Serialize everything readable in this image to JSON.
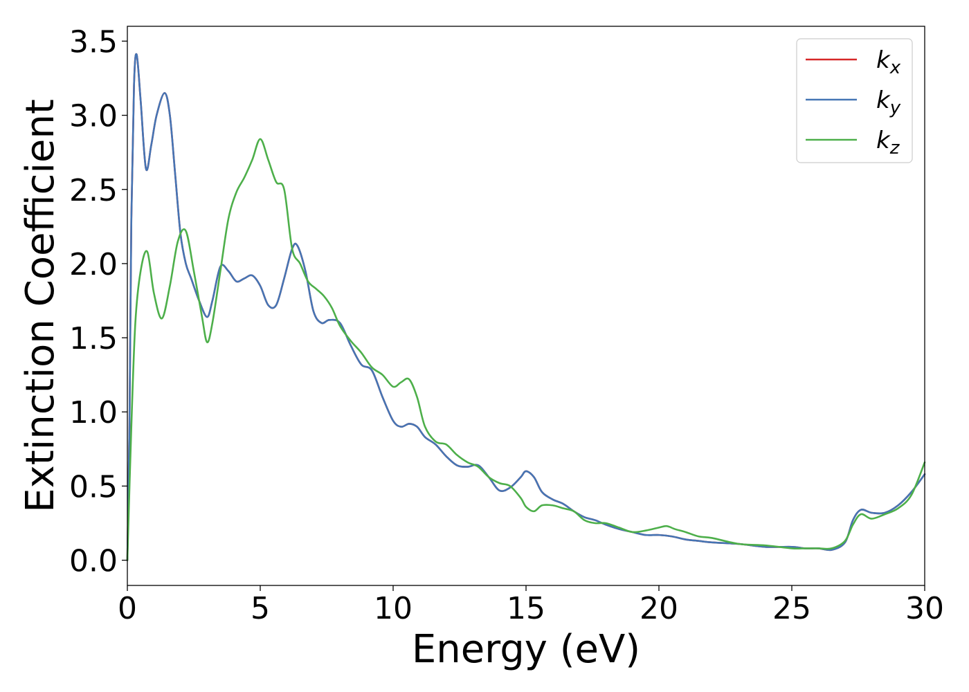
{
  "chart_data": {
    "type": "line",
    "title": "",
    "xlabel": "Energy (eV)",
    "ylabel": "Extinction Coefficient",
    "xlim": [
      0,
      30
    ],
    "ylim": [
      -0.17,
      3.6
    ],
    "x_ticks": [
      "0",
      "5",
      "10",
      "15",
      "20",
      "25",
      "30"
    ],
    "y_ticks": [
      "0.0",
      "0.5",
      "1.0",
      "1.5",
      "2.0",
      "2.5",
      "3.0",
      "3.5"
    ],
    "grid": false,
    "legend_position": "top-right",
    "series": [
      {
        "name": "kx",
        "label_base": "k",
        "label_sub": "x",
        "color": "#d62728",
        "x": [
          0,
          0.08,
          0.15,
          0.25,
          0.35,
          0.5,
          0.7,
          0.9,
          1.1,
          1.4,
          1.6,
          1.8,
          2.0,
          2.2,
          2.4,
          2.7,
          3.0,
          3.2,
          3.5,
          3.8,
          4.1,
          4.4,
          4.7,
          5.0,
          5.3,
          5.6,
          5.9,
          6.2,
          6.4,
          6.7,
          7.0,
          7.3,
          7.6,
          8.0,
          8.4,
          8.8,
          9.2,
          9.6,
          10.0,
          10.3,
          10.6,
          10.9,
          11.2,
          11.6,
          12.0,
          12.4,
          12.8,
          13.2,
          13.6,
          14.0,
          14.4,
          14.8,
          15.0,
          15.3,
          15.6,
          16.0,
          16.4,
          16.8,
          17.2,
          17.6,
          18.0,
          18.5,
          19.0,
          19.5,
          20.0,
          20.5,
          21.0,
          21.5,
          22.0,
          23.0,
          24.0,
          25.0,
          25.5,
          26.0,
          26.5,
          27.0,
          27.3,
          27.6,
          28.0,
          28.5,
          29.0,
          29.5,
          30.0
        ],
        "y": [
          0.0,
          0.9,
          2.3,
          3.2,
          3.41,
          3.1,
          2.64,
          2.8,
          3.0,
          3.15,
          3.0,
          2.6,
          2.2,
          2.0,
          1.9,
          1.75,
          1.64,
          1.75,
          1.98,
          1.95,
          1.88,
          1.9,
          1.92,
          1.85,
          1.72,
          1.72,
          1.9,
          2.1,
          2.12,
          1.95,
          1.68,
          1.6,
          1.62,
          1.6,
          1.45,
          1.32,
          1.28,
          1.1,
          0.94,
          0.9,
          0.92,
          0.9,
          0.83,
          0.78,
          0.7,
          0.64,
          0.63,
          0.64,
          0.56,
          0.47,
          0.49,
          0.56,
          0.6,
          0.56,
          0.46,
          0.41,
          0.38,
          0.33,
          0.29,
          0.27,
          0.24,
          0.21,
          0.19,
          0.17,
          0.17,
          0.16,
          0.14,
          0.13,
          0.12,
          0.11,
          0.09,
          0.09,
          0.08,
          0.08,
          0.07,
          0.12,
          0.27,
          0.34,
          0.32,
          0.32,
          0.37,
          0.46,
          0.58
        ]
      },
      {
        "name": "ky",
        "label_base": "k",
        "label_sub": "y",
        "color": "#4575b4",
        "x": [
          0,
          0.08,
          0.15,
          0.25,
          0.35,
          0.5,
          0.7,
          0.9,
          1.1,
          1.4,
          1.6,
          1.8,
          2.0,
          2.2,
          2.4,
          2.7,
          3.0,
          3.2,
          3.5,
          3.8,
          4.1,
          4.4,
          4.7,
          5.0,
          5.3,
          5.6,
          5.9,
          6.2,
          6.4,
          6.7,
          7.0,
          7.3,
          7.6,
          8.0,
          8.4,
          8.8,
          9.2,
          9.6,
          10.0,
          10.3,
          10.6,
          10.9,
          11.2,
          11.6,
          12.0,
          12.4,
          12.8,
          13.2,
          13.6,
          14.0,
          14.4,
          14.8,
          15.0,
          15.3,
          15.6,
          16.0,
          16.4,
          16.8,
          17.2,
          17.6,
          18.0,
          18.5,
          19.0,
          19.5,
          20.0,
          20.5,
          21.0,
          21.5,
          22.0,
          23.0,
          24.0,
          25.0,
          25.5,
          26.0,
          26.5,
          27.0,
          27.3,
          27.6,
          28.0,
          28.5,
          29.0,
          29.5,
          30.0
        ],
        "y": [
          0.0,
          0.9,
          2.3,
          3.2,
          3.41,
          3.1,
          2.64,
          2.8,
          3.0,
          3.15,
          3.0,
          2.6,
          2.2,
          2.0,
          1.9,
          1.75,
          1.64,
          1.75,
          1.98,
          1.95,
          1.88,
          1.9,
          1.92,
          1.85,
          1.72,
          1.72,
          1.9,
          2.1,
          2.12,
          1.95,
          1.68,
          1.6,
          1.62,
          1.6,
          1.45,
          1.32,
          1.28,
          1.1,
          0.94,
          0.9,
          0.92,
          0.9,
          0.83,
          0.78,
          0.7,
          0.64,
          0.63,
          0.64,
          0.56,
          0.47,
          0.49,
          0.56,
          0.6,
          0.56,
          0.46,
          0.41,
          0.38,
          0.33,
          0.29,
          0.27,
          0.24,
          0.21,
          0.19,
          0.17,
          0.17,
          0.16,
          0.14,
          0.13,
          0.12,
          0.11,
          0.09,
          0.09,
          0.08,
          0.08,
          0.07,
          0.12,
          0.27,
          0.34,
          0.32,
          0.32,
          0.37,
          0.46,
          0.58
        ]
      },
      {
        "name": "kz",
        "label_base": "k",
        "label_sub": "z",
        "color": "#4daf4a",
        "x": [
          0,
          0.15,
          0.3,
          0.5,
          0.75,
          1.0,
          1.3,
          1.6,
          1.9,
          2.2,
          2.5,
          2.8,
          3.0,
          3.2,
          3.5,
          3.8,
          4.1,
          4.4,
          4.7,
          5.0,
          5.3,
          5.6,
          5.9,
          6.2,
          6.5,
          6.8,
          7.1,
          7.4,
          7.7,
          8.0,
          8.4,
          8.8,
          9.2,
          9.6,
          10.0,
          10.3,
          10.6,
          10.9,
          11.2,
          11.6,
          12.0,
          12.4,
          12.8,
          13.2,
          13.6,
          14.0,
          14.4,
          14.8,
          15.0,
          15.3,
          15.6,
          16.0,
          16.4,
          16.8,
          17.2,
          17.6,
          18.0,
          18.5,
          19.0,
          19.5,
          20.0,
          20.3,
          20.6,
          21.0,
          21.5,
          22.0,
          23.0,
          24.0,
          25.0,
          25.5,
          26.0,
          26.5,
          27.0,
          27.3,
          27.6,
          28.0,
          28.5,
          29.0,
          29.5,
          30.0
        ],
        "y": [
          0.0,
          0.9,
          1.6,
          1.95,
          2.08,
          1.8,
          1.63,
          1.85,
          2.15,
          2.22,
          1.95,
          1.65,
          1.47,
          1.6,
          1.95,
          2.3,
          2.48,
          2.58,
          2.7,
          2.84,
          2.7,
          2.55,
          2.5,
          2.1,
          2.0,
          1.88,
          1.83,
          1.78,
          1.7,
          1.58,
          1.48,
          1.4,
          1.3,
          1.25,
          1.17,
          1.2,
          1.22,
          1.1,
          0.9,
          0.8,
          0.78,
          0.71,
          0.66,
          0.63,
          0.56,
          0.52,
          0.5,
          0.42,
          0.36,
          0.33,
          0.37,
          0.37,
          0.35,
          0.33,
          0.27,
          0.25,
          0.25,
          0.22,
          0.19,
          0.2,
          0.22,
          0.23,
          0.21,
          0.19,
          0.16,
          0.15,
          0.11,
          0.1,
          0.08,
          0.08,
          0.08,
          0.08,
          0.13,
          0.24,
          0.31,
          0.28,
          0.31,
          0.35,
          0.44,
          0.66
        ]
      }
    ]
  }
}
